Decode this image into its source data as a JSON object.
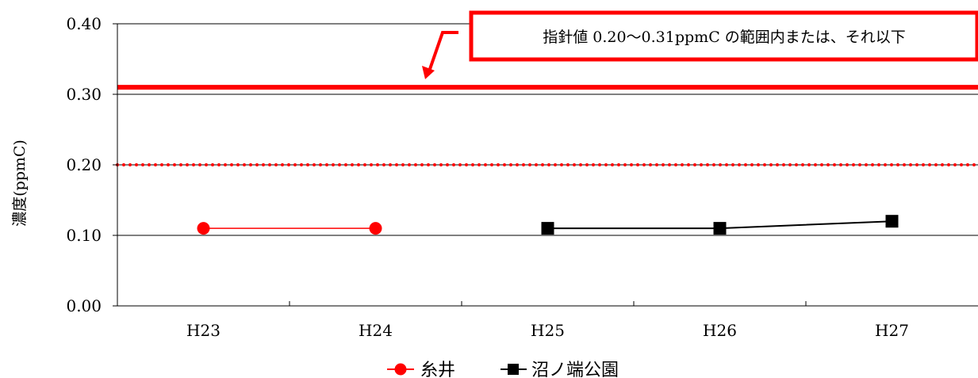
{
  "chart_data": {
    "type": "line",
    "categories": [
      "H23",
      "H24",
      "H25",
      "H26",
      "H27"
    ],
    "ylabel": "濃度(ppmC)",
    "ylim": [
      0,
      0.4
    ],
    "yticks": [
      "0.00",
      "0.10",
      "0.20",
      "0.30",
      "0.40"
    ],
    "grid": true,
    "legend_position": "bottom",
    "series": [
      {
        "name": "糸井",
        "color": "#ff0000",
        "marker": "circle",
        "values": [
          0.11,
          0.11,
          null,
          null,
          null
        ]
      },
      {
        "name": "沼ノ端公園",
        "color": "#000000",
        "marker": "square",
        "values": [
          null,
          null,
          0.11,
          0.11,
          0.12
        ]
      }
    ],
    "reference_lines": [
      {
        "value": 0.2,
        "style": "dotted",
        "color": "#ff0000"
      },
      {
        "value": 0.31,
        "style": "solid",
        "color": "#ff0000"
      }
    ],
    "annotation": "指針値 0.20～0.31ppmC の範囲内または、それ以下"
  }
}
